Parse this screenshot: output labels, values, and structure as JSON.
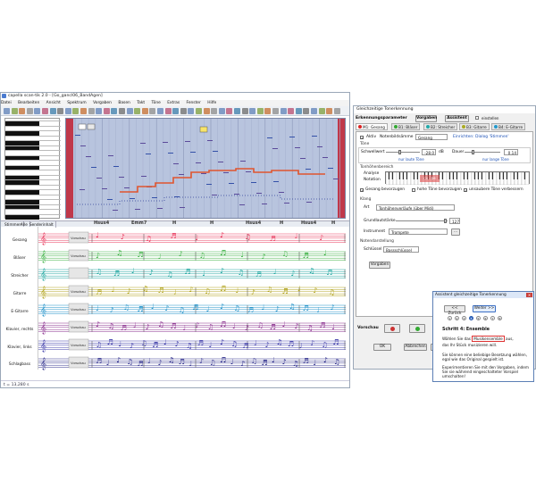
{
  "main_window": {
    "title": "capella scan-tik 2.0 - [Go_gancl06_BandAgen]",
    "menu": [
      "Datei",
      "Bearbeiten",
      "Ansicht",
      "Spektrum",
      "Vorgaben",
      "Basen",
      "Takt",
      "Töne",
      "Extras",
      "Fenster",
      "Hilfe"
    ],
    "stave_tabs": [
      "Stimmen",
      "Alle",
      "Senderinhalt"
    ],
    "chords": [
      "Hsus4",
      "Emm7",
      "H",
      "H",
      "Hsus4",
      "H",
      "Hsus4",
      "H"
    ],
    "staves": [
      {
        "label": "Gesang",
        "color": "#e8365a",
        "clef_text": "Vorschau"
      },
      {
        "label": "Bläser",
        "color": "#3cb043",
        "clef_text": "Vorschau"
      },
      {
        "label": "Streicher",
        "color": "#20a6a0",
        "clef_text": ""
      },
      {
        "label": "Gitarre",
        "color": "#b0a21a",
        "clef_text": "Vorschau"
      },
      {
        "label": "E-Gitarre",
        "color": "#1f90c8",
        "clef_text": "Vorschau"
      },
      {
        "label": "Klavier, rechts",
        "color": "#8a2f8e",
        "clef_text": "Vorschau"
      },
      {
        "label": "Klavier, links",
        "color": "#3b39a8",
        "clef_text": "Vorschau"
      },
      {
        "label": "Schlagbass",
        "color": "#2e2e8c",
        "clef_text": "Vorschau"
      }
    ],
    "status": "t = 13,280 s"
  },
  "dialog": {
    "title": "Gleichzeitige Tonerkennung",
    "header": "Erkennungsparameter",
    "header_buttons": [
      "Vorgaben",
      "Assistent"
    ],
    "header_check": "einstellen",
    "tabs": [
      "M1: Gesang",
      "B1: Bläser",
      "B2: Streicher",
      "B3: Gitarre",
      "B4: E-Gitarre"
    ],
    "aktiv_label": "Aktiv",
    "noten_label": "Notenbildsämme",
    "noten_value": "Gesang",
    "einrichten_link": "Einrichten: Dialog 'Stimmen'",
    "tone_section": "Töne",
    "schwellwert_label": "Schwellwert",
    "schwellwert_value": "-28.0",
    "schwellwert_unit": "dB",
    "dauer_label": "Dauer",
    "dauer_value": "0.14",
    "nur_laute": "nur laute Töne",
    "nur_lange": "nur lange Töne",
    "tonhoehe_section": "Tonhöhenbereich",
    "analyse_label": "Analyse",
    "notation_label": "Notation",
    "keyboard_label": "C4 - D6",
    "checks": [
      "Gesang bevorzugen",
      "hohe Töne bevorzugen",
      "unsaubere Töne verbessern"
    ],
    "klang_section": "Klang",
    "art_label": "Art",
    "art_value": "Tonhöhenverläufe (über Midi)",
    "grund_label": "Grundlautstärke",
    "grund_value": "127",
    "instrument_label": "Instrument",
    "instrument_value": "Trompete",
    "noten_darst_section": "Notendarstellung",
    "schluessel_label": "Schlüssel",
    "schluessel_value": "Bassschlüssel",
    "vorgaben_btn": "Vorgaben",
    "vorschau_label": "Vorschau",
    "bottom_buttons": [
      "OK",
      "Abbrechen",
      "Hilfe"
    ]
  },
  "assistant": {
    "title": "Assistent gleichzeitige Tonerkennung",
    "back": "<< Zurück",
    "next": "Weiter >>",
    "steps": [
      "1",
      "2",
      "3",
      "4",
      "5",
      "6",
      "7",
      "8"
    ],
    "active_step": 4,
    "heading": "Schritt 4: Ensemble",
    "line1_pre": "Wählen Sie das",
    "line1_field": "Musikensemble",
    "line1_post": "aus,",
    "line2": "das Ihr Stück musizieren will.",
    "para2": "Sie können eine beliebige Besetzung wählen, egal wie das Original gespielt ist.",
    "para3": "Experimentieren Sie mit den Vorgaben, indem Sie sie während eingeschalteter Vorspiel umschalten!"
  }
}
